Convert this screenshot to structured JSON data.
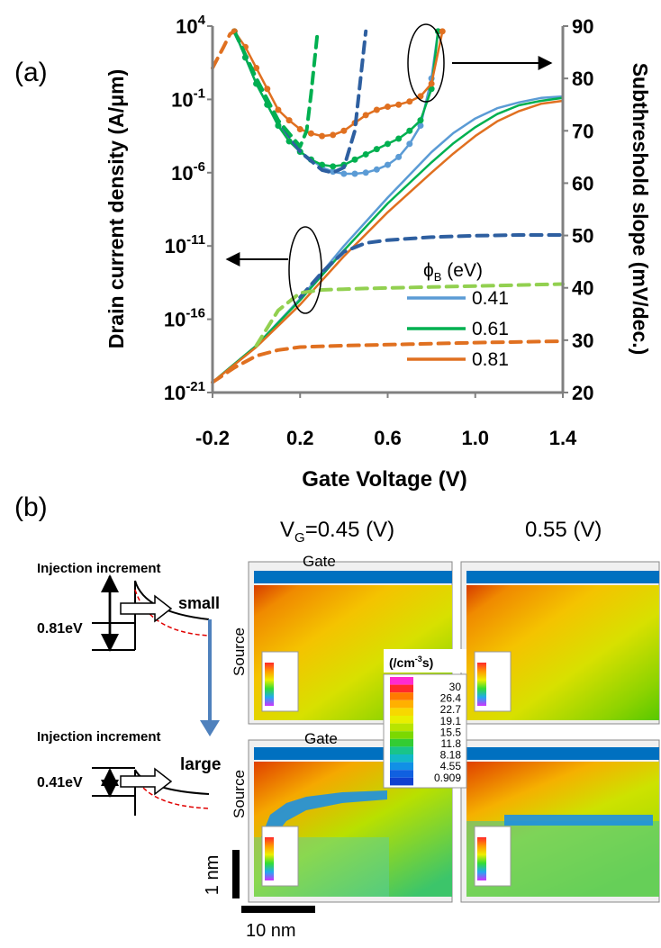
{
  "panel_a": {
    "label": "(a)",
    "ylabel_left": "Drain current density (A/μm)",
    "ylabel_right": "Subthreshold slope (mV/dec.)",
    "xlabel": "Gate Voltage (V)",
    "legend_title_phi": "ϕ",
    "legend_title_sub": "B",
    "legend_title_unit": " (eV)"
  },
  "panel_b": {
    "label": "(b)",
    "vg_prefix": "V",
    "vg_sub": "G",
    "vg_value": "=0.45 (V)",
    "col2_title": "0.55 (V)",
    "injection_top": "Injection increment",
    "injection_bottom": "Injection increment",
    "barrier_top": "0.81eV",
    "barrier_bottom": "0.41eV",
    "small": "small",
    "large": "large",
    "gate_top": "Gate",
    "gate_bottom": "Gate",
    "source_top": "Source",
    "source_bottom": "Source",
    "colorbar_unit_pre": "(/cm",
    "colorbar_unit_sup": "-3",
    "colorbar_unit_post": "s)",
    "colorbar_ticks": [
      "30",
      "26.4",
      "22.7",
      "19.1",
      "15.5",
      "11.8",
      "8.18",
      "4.55",
      "0.909"
    ],
    "scale_vertical": "1 nm",
    "scale_horizontal": "10 nm",
    "colors": {
      "accent_arrow": "#4f81bd",
      "large_text": "#e00000",
      "gate_bar": "#0070c0"
    }
  },
  "chart_data": {
    "type": "line",
    "title": "",
    "xlabel": "Gate Voltage (V)",
    "ylabel": "Drain current density (A/μm)",
    "y2label": "Subthreshold slope (mV/dec.)",
    "xlim": [
      -0.2,
      1.4
    ],
    "ylim_log10": [
      -21,
      4
    ],
    "y2lim": [
      20,
      90
    ],
    "xticks": [
      "-0.2",
      "0.2",
      "0.6",
      "1.0",
      "1.4"
    ],
    "yticks": [
      {
        "base": "10",
        "exp": "4",
        "value": 4
      },
      {
        "base": "10",
        "exp": "-1",
        "value": -1
      },
      {
        "base": "10",
        "exp": "-6",
        "value": -6
      },
      {
        "base": "10",
        "exp": "-11",
        "value": -11
      },
      {
        "base": "10",
        "exp": "-16",
        "value": -16
      },
      {
        "base": "10",
        "exp": "-21",
        "value": -21
      }
    ],
    "y2ticks": [
      "90",
      "80",
      "70",
      "60",
      "50",
      "40",
      "30",
      "20"
    ],
    "legend_position": "lower-right",
    "series": [
      {
        "name": "0.41",
        "color": "#5b9bd5",
        "axis": "left",
        "style": "solid",
        "x": [
          -0.2,
          0.0,
          0.2,
          0.4,
          0.6,
          0.8,
          0.9,
          1.0,
          1.1,
          1.2,
          1.3,
          1.4
        ],
        "log10_y": [
          -20.3,
          -17.8,
          -14.6,
          -11.0,
          -7.7,
          -4.6,
          -3.3,
          -2.3,
          -1.6,
          -1.2,
          -0.9,
          -0.8
        ]
      },
      {
        "name": "0.61",
        "color": "#00b050",
        "axis": "left",
        "style": "solid",
        "x": [
          -0.2,
          0.0,
          0.2,
          0.4,
          0.6,
          0.8,
          0.9,
          1.0,
          1.1,
          1.2,
          1.3,
          1.4
        ],
        "log10_y": [
          -20.3,
          -17.8,
          -14.7,
          -11.3,
          -8.1,
          -5.3,
          -4.0,
          -2.9,
          -2.0,
          -1.4,
          -1.1,
          -0.9
        ]
      },
      {
        "name": "0.81",
        "color": "#e07020",
        "axis": "left",
        "style": "solid",
        "x": [
          -0.2,
          0.0,
          0.2,
          0.4,
          0.6,
          0.8,
          0.9,
          1.0,
          1.1,
          1.2,
          1.3,
          1.4
        ],
        "log10_y": [
          -20.3,
          -17.9,
          -15.0,
          -11.7,
          -8.7,
          -6.0,
          -4.7,
          -3.5,
          -2.5,
          -1.8,
          -1.3,
          -1.1
        ]
      },
      {
        "name": "",
        "color": "#2e5fa0",
        "axis": "left",
        "style": "dashed",
        "x": [
          0.2,
          0.3,
          0.4,
          0.5,
          0.6,
          0.8,
          1.0,
          1.2,
          1.4
        ],
        "log10_y": [
          -14.5,
          -12.8,
          -11.4,
          -10.8,
          -10.6,
          -10.4,
          -10.3,
          -10.25,
          -10.25
        ]
      },
      {
        "name": "",
        "color": "#92d050",
        "axis": "left",
        "style": "dashed",
        "x": [
          0.0,
          0.1,
          0.2,
          0.3,
          0.5,
          0.8,
          1.1,
          1.4
        ],
        "log10_y": [
          -17.8,
          -15.4,
          -14.2,
          -14.0,
          -13.9,
          -13.8,
          -13.7,
          -13.6
        ]
      },
      {
        "name": "",
        "color": "#e07020",
        "axis": "left",
        "style": "dashed",
        "x": [
          -0.2,
          -0.1,
          0.0,
          0.1,
          0.2,
          0.4,
          0.7,
          1.0,
          1.4
        ],
        "log10_y": [
          -20.3,
          -19.3,
          -18.5,
          -18.1,
          -17.9,
          -17.8,
          -17.7,
          -17.6,
          -17.5
        ]
      },
      {
        "name": "",
        "color": "#5b9bd5",
        "axis": "right",
        "style": "solid-markers",
        "x": [
          -0.1,
          -0.05,
          0.0,
          0.05,
          0.1,
          0.15,
          0.2,
          0.25,
          0.3,
          0.35,
          0.4,
          0.45,
          0.5,
          0.55,
          0.6,
          0.65,
          0.7,
          0.75,
          0.8,
          0.83
        ],
        "y": [
          89,
          84,
          79,
          75,
          71,
          68,
          66,
          64.5,
          63,
          62.2,
          61.8,
          61.8,
          62,
          62.6,
          63.5,
          65,
          67.5,
          71,
          80,
          89
        ]
      },
      {
        "name": "",
        "color": "#00b050",
        "axis": "right",
        "style": "solid-markers",
        "x": [
          -0.1,
          -0.05,
          0.0,
          0.05,
          0.1,
          0.15,
          0.2,
          0.25,
          0.3,
          0.35,
          0.4,
          0.45,
          0.5,
          0.55,
          0.6,
          0.65,
          0.7,
          0.75,
          0.8,
          0.83
        ],
        "y": [
          89,
          84,
          79,
          75,
          71,
          68,
          66,
          64.5,
          63.5,
          63.2,
          63.5,
          64.5,
          65.5,
          66.5,
          67.5,
          68.5,
          70,
          72,
          78,
          89
        ]
      },
      {
        "name": "",
        "color": "#e07020",
        "axis": "right",
        "style": "solid-markers",
        "x": [
          -0.1,
          -0.05,
          0.0,
          0.05,
          0.1,
          0.15,
          0.2,
          0.25,
          0.3,
          0.35,
          0.4,
          0.45,
          0.5,
          0.55,
          0.6,
          0.65,
          0.7,
          0.75,
          0.8,
          0.85
        ],
        "y": [
          89,
          86,
          82,
          78,
          74,
          72,
          70.3,
          69.5,
          69,
          69.2,
          70,
          71.5,
          73,
          74,
          74.6,
          75,
          75.6,
          76.6,
          79,
          89
        ]
      },
      {
        "name": "",
        "color": "#2e5fa0",
        "axis": "right",
        "style": "dashed",
        "x": [
          -0.1,
          0.0,
          0.1,
          0.2,
          0.3,
          0.35,
          0.4,
          0.45,
          0.5
        ],
        "y": [
          89,
          80,
          72,
          66,
          62.5,
          62,
          63,
          70,
          89
        ]
      },
      {
        "name": "",
        "color": "#00b050",
        "axis": "right",
        "style": "dashed",
        "x": [
          -0.1,
          0.0,
          0.1,
          0.2,
          0.23,
          0.25,
          0.28
        ],
        "y": [
          89,
          80,
          72,
          67,
          70,
          77,
          89
        ]
      },
      {
        "name": "",
        "color": "#e07020",
        "axis": "right",
        "style": "dashed",
        "x": [
          -0.2,
          -0.15,
          -0.12,
          -0.1
        ],
        "y": [
          82,
          86,
          88.5,
          89
        ]
      }
    ]
  }
}
